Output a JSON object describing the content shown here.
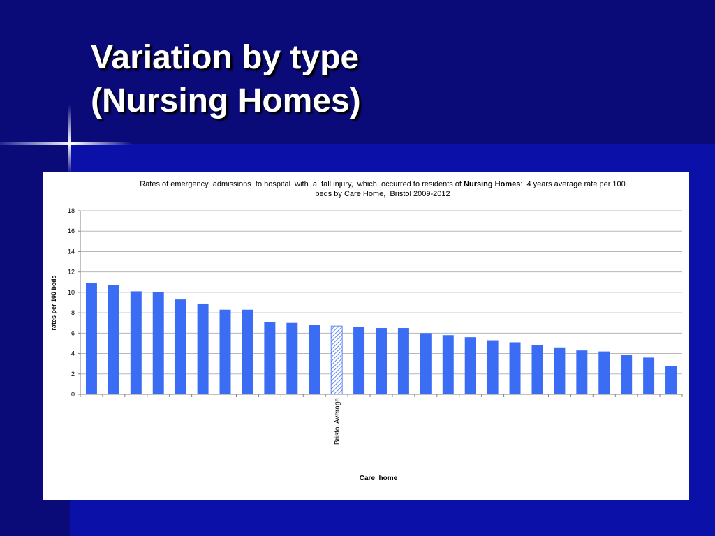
{
  "slide": {
    "title_line1": "Variation by type",
    "title_line2": "(Nursing Homes)"
  },
  "colors": {
    "background": "#0a10a8",
    "title_band": "#0a0a78",
    "bar": "#3a6cf4",
    "average_bar": "#3a6cf4"
  },
  "chart_data": {
    "type": "bar",
    "title_line1_prefix": "Rates of emergency  admissions  to hospital  with  a  fall injury,  which  occurred to residents of ",
    "title_line1_bold": "Nursing Homes",
    "title_line1_suffix": ":  4 years average rate per 100",
    "title_line2": "beds by Care Home,  Bristol 2009-2012",
    "ylabel": "rates per 100 beds",
    "xlabel": "Care  home",
    "ylim": [
      0,
      18
    ],
    "yticks": [
      0,
      2,
      4,
      6,
      8,
      10,
      12,
      14,
      16,
      18
    ],
    "grid": true,
    "highlight_label": "Bristol Average",
    "highlight_index": 11,
    "values": [
      10.9,
      10.7,
      10.1,
      10.0,
      9.3,
      8.9,
      8.3,
      8.3,
      7.1,
      7.0,
      6.8,
      6.7,
      6.6,
      6.5,
      6.5,
      6.0,
      5.8,
      5.6,
      5.3,
      5.1,
      4.8,
      4.6,
      4.3,
      4.2,
      3.9,
      3.6,
      2.8
    ]
  }
}
